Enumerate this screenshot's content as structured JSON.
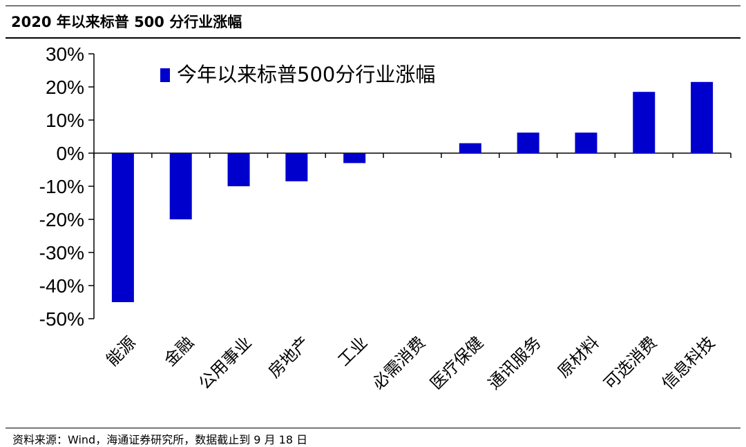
{
  "header": {
    "title": "2020 年以来标普 500 分行业涨幅"
  },
  "footer": {
    "source": "资料来源：Wind，海通证券研究所，数据截止到 9 月 18 日"
  },
  "chart_data": {
    "type": "bar",
    "categories": [
      "能源",
      "金融",
      "公用事业",
      "房地产",
      "工业",
      "必需消费",
      "医疗保健",
      "通讯服务",
      "原材料",
      "可选消费",
      "信息科技"
    ],
    "series": [
      {
        "name": "今年以来标普500分行业涨幅",
        "values": [
          -45,
          -20,
          -10,
          -8.5,
          -3,
          0,
          3,
          6.2,
          6.2,
          18.5,
          21.5
        ]
      }
    ],
    "y_ticks": [
      "30%",
      "20%",
      "10%",
      "0%",
      "-10%",
      "-20%",
      "-30%",
      "-40%",
      "-50%"
    ],
    "ylim": [
      -50,
      30
    ],
    "legend_position": "top-left",
    "colors": {
      "bar": "#0000CC",
      "axis": "#000000"
    }
  }
}
